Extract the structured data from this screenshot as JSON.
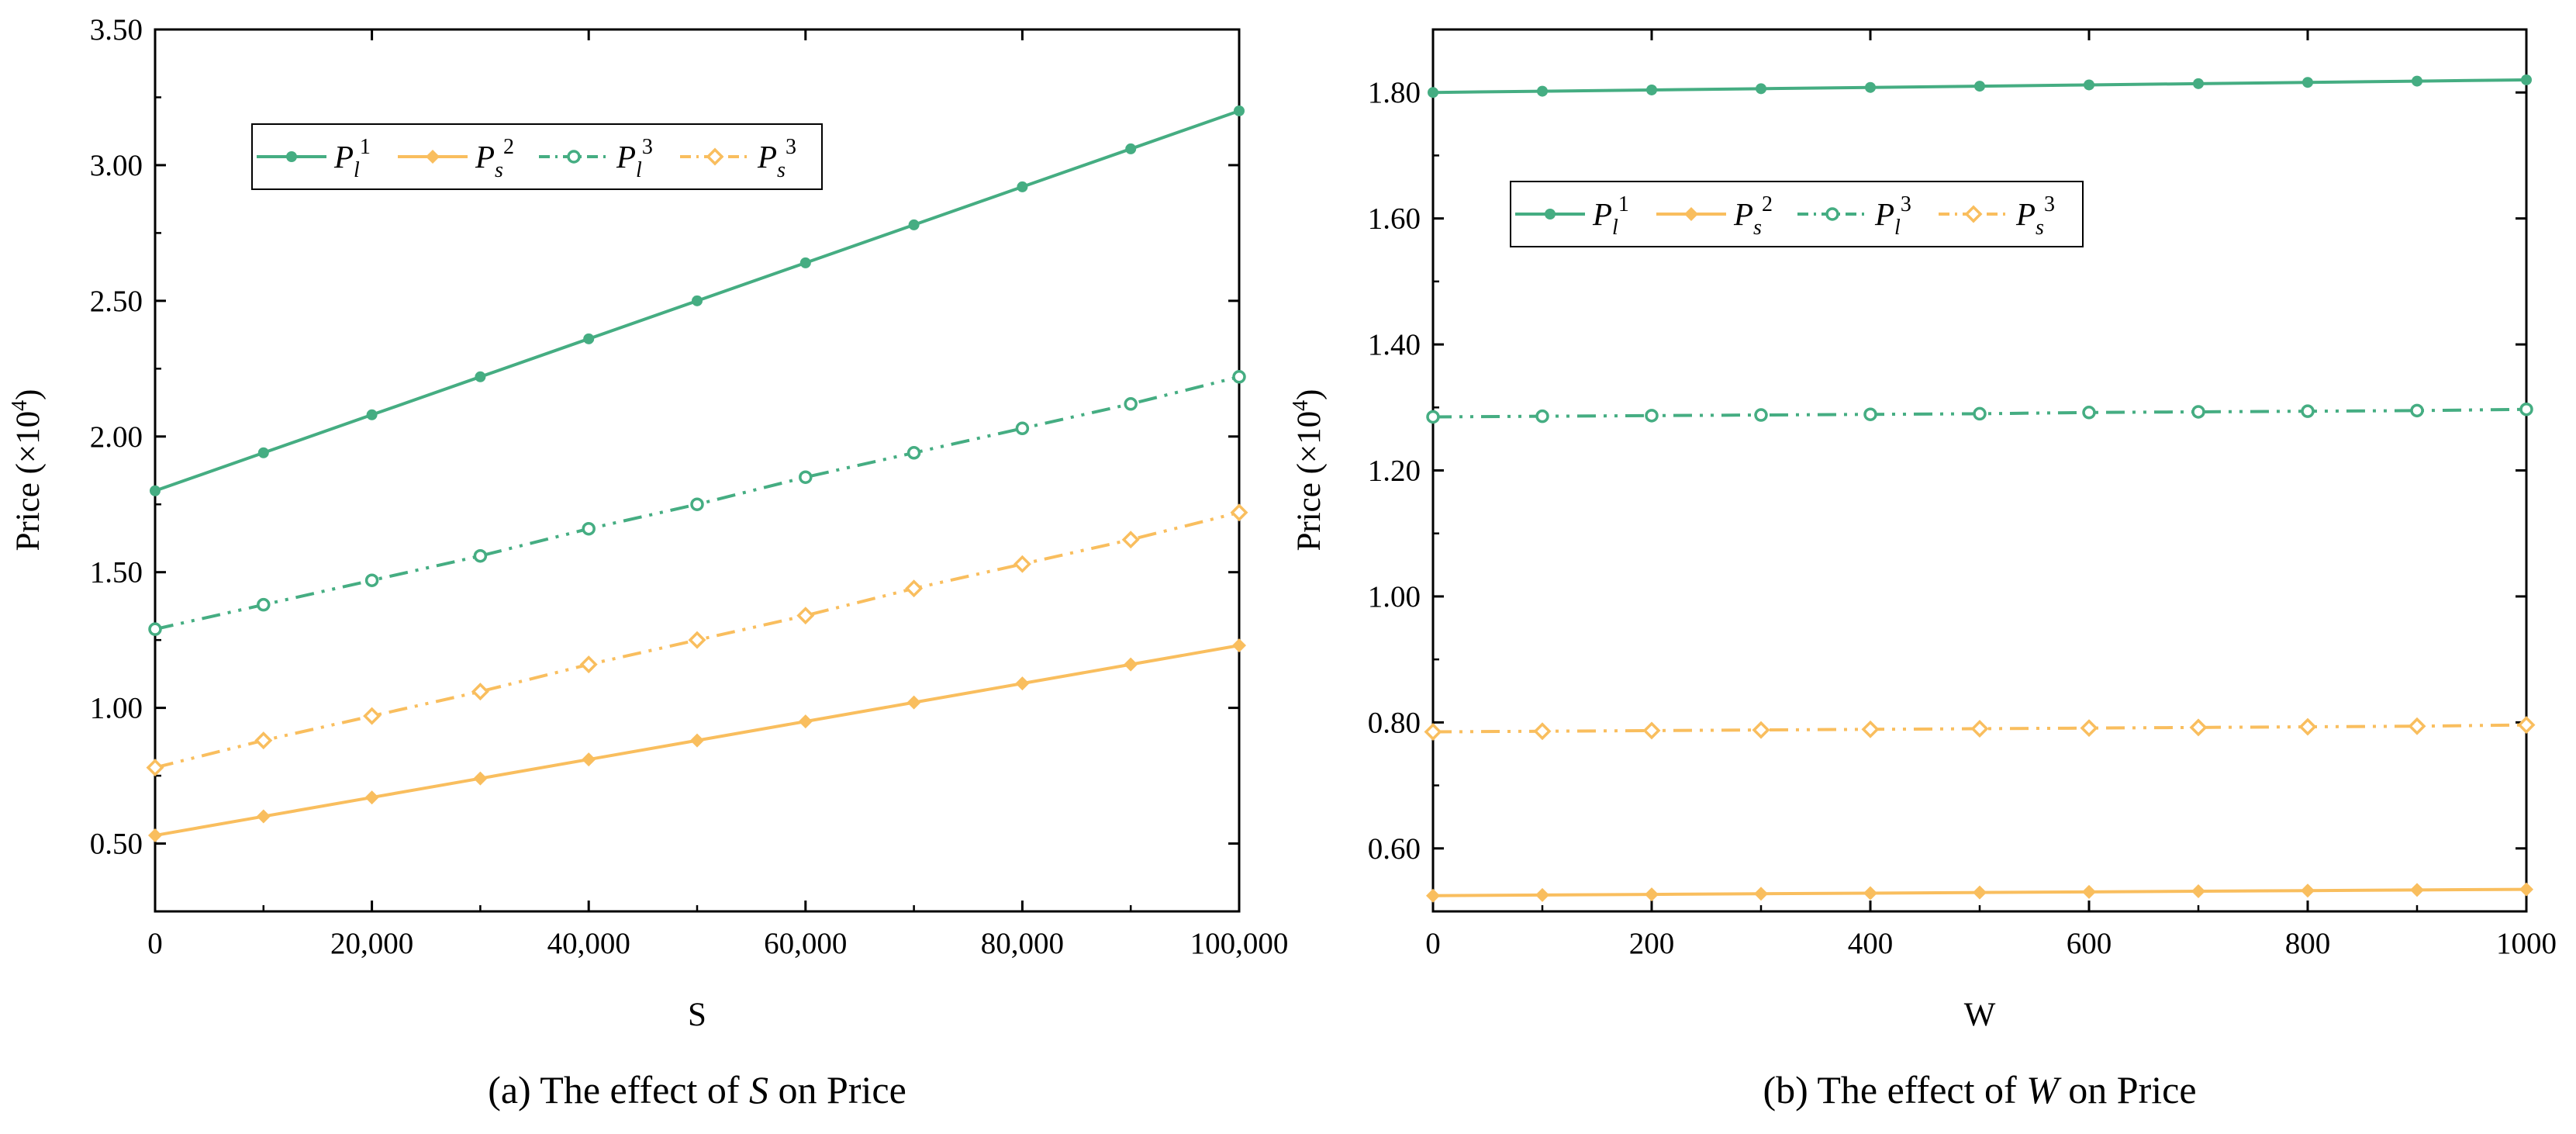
{
  "colors": {
    "green": "#45ad82",
    "orange": "#f9be5e",
    "axis": "#000000"
  },
  "chart_data": [
    {
      "type": "line",
      "caption_prefix": "(a) The effect of ",
      "caption_var": "S",
      "caption_suffix": " on Price",
      "xlabel": "S",
      "ylabel_main": "Price (×10",
      "ylabel_sup": "4",
      "ylabel_close": ")",
      "xlim": [
        0,
        100000
      ],
      "ylim": [
        0.25,
        3.5
      ],
      "xticks": [
        0,
        20000,
        40000,
        60000,
        80000,
        100000
      ],
      "xtick_labels": [
        "0",
        "20,000",
        "40,000",
        "60,000",
        "80,000",
        "100,000"
      ],
      "yticks": [
        0.5,
        1.0,
        1.5,
        2.0,
        2.5,
        3.0,
        3.5
      ],
      "ytick_labels": [
        "0.50",
        "1.00",
        "1.50",
        "2.00",
        "2.50",
        "3.00",
        "3.50"
      ],
      "legend_position": "top-left",
      "x": [
        0,
        10000,
        20000,
        30000,
        40000,
        50000,
        60000,
        70000,
        80000,
        90000,
        100000
      ],
      "series": [
        {
          "name": "P_l^1",
          "base": "P",
          "sub": "l",
          "sup": "1",
          "color": "green",
          "dash": "solid",
          "marker": "filled-circle",
          "values": [
            1.8,
            1.94,
            2.08,
            2.22,
            2.36,
            2.5,
            2.64,
            2.78,
            2.92,
            3.06,
            3.2
          ]
        },
        {
          "name": "P_s^2",
          "base": "P",
          "sub": "s",
          "sup": "2",
          "color": "orange",
          "dash": "solid",
          "marker": "filled-diamond",
          "values": [
            0.53,
            0.6,
            0.67,
            0.74,
            0.81,
            0.88,
            0.95,
            1.02,
            1.09,
            1.16,
            1.23
          ]
        },
        {
          "name": "P_l^3",
          "base": "P",
          "sub": "l",
          "sup": "3",
          "color": "green",
          "dash": "dashdotdot",
          "marker": "open-circle",
          "values": [
            1.29,
            1.38,
            1.47,
            1.56,
            1.66,
            1.75,
            1.85,
            1.94,
            2.03,
            2.12,
            2.22
          ]
        },
        {
          "name": "P_s^3",
          "base": "P",
          "sub": "s",
          "sup": "3",
          "color": "orange",
          "dash": "dashdotdot",
          "marker": "open-diamond",
          "values": [
            0.78,
            0.88,
            0.97,
            1.06,
            1.16,
            1.25,
            1.34,
            1.44,
            1.53,
            1.62,
            1.72
          ]
        }
      ]
    },
    {
      "type": "line",
      "caption_prefix": "(b) The effect of ",
      "caption_var": "W",
      "caption_suffix": " on Price",
      "xlabel": "W",
      "ylabel_main": "Price (×10",
      "ylabel_sup": "4",
      "ylabel_close": ")",
      "xlim": [
        0,
        1000
      ],
      "ylim": [
        0.5,
        1.9
      ],
      "xticks": [
        0,
        200,
        400,
        600,
        800,
        1000
      ],
      "xtick_labels": [
        "0",
        "200",
        "400",
        "600",
        "800",
        "1000"
      ],
      "yticks": [
        0.6,
        0.8,
        1.0,
        1.2,
        1.4,
        1.6,
        1.8
      ],
      "ytick_labels": [
        "0.60",
        "0.80",
        "1.00",
        "1.20",
        "1.40",
        "1.60",
        "1.80"
      ],
      "legend_position": "upper-left",
      "x": [
        0,
        100,
        200,
        300,
        400,
        500,
        600,
        700,
        800,
        900,
        1000
      ],
      "series": [
        {
          "name": "P_l^1",
          "base": "P",
          "sub": "l",
          "sup": "1",
          "color": "green",
          "dash": "solid",
          "marker": "filled-circle",
          "values": [
            1.8,
            1.802,
            1.804,
            1.806,
            1.808,
            1.81,
            1.812,
            1.814,
            1.816,
            1.818,
            1.82
          ]
        },
        {
          "name": "P_s^2",
          "base": "P",
          "sub": "s",
          "sup": "2",
          "color": "orange",
          "dash": "solid",
          "marker": "filled-diamond",
          "values": [
            0.525,
            0.526,
            0.527,
            0.528,
            0.529,
            0.53,
            0.531,
            0.532,
            0.533,
            0.534,
            0.535
          ]
        },
        {
          "name": "P_l^3",
          "base": "P",
          "sub": "l",
          "sup": "3",
          "color": "green",
          "dash": "dashdotdot",
          "marker": "open-circle",
          "values": [
            1.285,
            1.286,
            1.287,
            1.288,
            1.289,
            1.29,
            1.292,
            1.293,
            1.294,
            1.295,
            1.297
          ]
        },
        {
          "name": "P_s^3",
          "base": "P",
          "sub": "s",
          "sup": "3",
          "color": "orange",
          "dash": "dashdotdot",
          "marker": "open-diamond",
          "values": [
            0.785,
            0.786,
            0.787,
            0.788,
            0.789,
            0.79,
            0.791,
            0.792,
            0.793,
            0.794,
            0.796
          ]
        }
      ]
    }
  ]
}
